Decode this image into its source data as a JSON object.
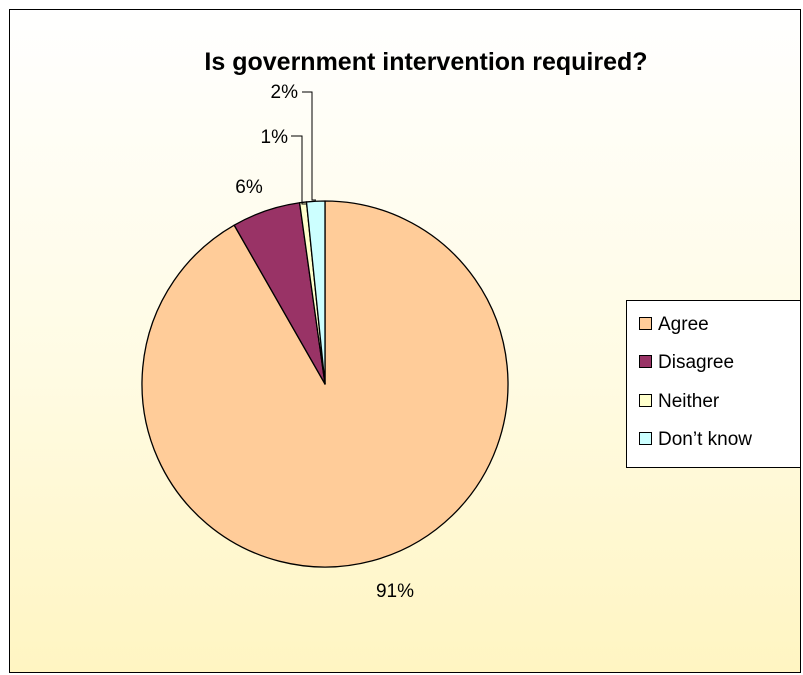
{
  "chart_data": {
    "type": "pie",
    "title": "Is government intervention required?",
    "slices": [
      {
        "label": "Agree",
        "value": 91,
        "display": "91%",
        "color": "#ffcc99"
      },
      {
        "label": "Disagree",
        "value": 6,
        "display": "6%",
        "color": "#993366"
      },
      {
        "label": "Neither",
        "value": 0.6,
        "display": "1%",
        "color": "#ffffcc"
      },
      {
        "label": "Don’t know",
        "value": 1.6,
        "display": "2%",
        "color": "#ccffff"
      }
    ],
    "legend": "right"
  }
}
